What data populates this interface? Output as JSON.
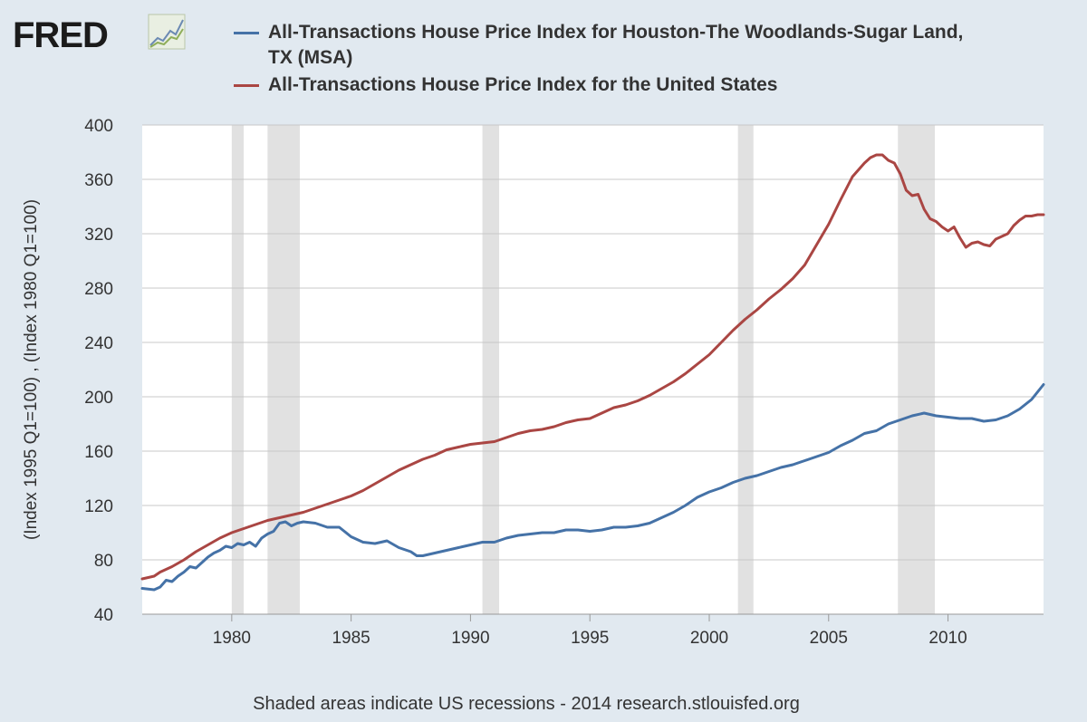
{
  "header": {
    "logo_text": "FRED",
    "logo_icon": "trend-graph-icon"
  },
  "legend": {
    "items": [
      {
        "label": "All-Transactions House Price Index for Houston-The Woodlands-Sugar Land, TX (MSA)",
        "color": "#4572a7"
      },
      {
        "label": "All-Transactions House Price Index for the United States",
        "color": "#aa4643"
      }
    ]
  },
  "footer": {
    "note": "Shaded areas indicate US recessions - 2014 research.stlouisfed.org"
  },
  "colors": {
    "background": "#e1e9f0",
    "plot_area": "#ffffff",
    "gridline": "#c8c8c8",
    "recession": "#e1e1e1"
  },
  "chart_data": {
    "type": "line",
    "title": "",
    "xlabel": "",
    "ylabel": "(Index 1995 Q1=100) , (Index 1980 Q1=100)",
    "xlim": [
      1976.25,
      2014.0
    ],
    "ylim": [
      40,
      400
    ],
    "yticks": [
      40,
      80,
      120,
      160,
      200,
      240,
      280,
      320,
      360,
      400
    ],
    "xticks": [
      1980,
      1985,
      1990,
      1995,
      2000,
      2005,
      2010
    ],
    "grid": true,
    "recessions": [
      [
        1980.0,
        1980.5
      ],
      [
        1981.5,
        1982.85
      ],
      [
        1990.5,
        1991.2
      ],
      [
        2001.2,
        2001.85
      ],
      [
        2007.9,
        2009.45
      ]
    ],
    "series": [
      {
        "name": "All-Transactions House Price Index for Houston-The Woodlands-Sugar Land, TX (MSA)",
        "color": "#4572a7",
        "x": [
          1976.25,
          1976.75,
          1977.0,
          1977.25,
          1977.5,
          1977.75,
          1978.0,
          1978.25,
          1978.5,
          1978.75,
          1979.0,
          1979.25,
          1979.5,
          1979.75,
          1980.0,
          1980.25,
          1980.5,
          1980.75,
          1981.0,
          1981.25,
          1981.5,
          1981.75,
          1982.0,
          1982.25,
          1982.5,
          1982.75,
          1983.0,
          1983.5,
          1984.0,
          1984.5,
          1985.0,
          1985.5,
          1986.0,
          1986.5,
          1987.0,
          1987.5,
          1987.75,
          1988.0,
          1988.5,
          1989.0,
          1989.5,
          1990.0,
          1990.5,
          1991.0,
          1991.5,
          1992.0,
          1992.5,
          1993.0,
          1993.5,
          1994.0,
          1994.5,
          1995.0,
          1995.5,
          1996.0,
          1996.5,
          1997.0,
          1997.5,
          1998.0,
          1998.5,
          1999.0,
          1999.5,
          2000.0,
          2000.5,
          2001.0,
          2001.5,
          2002.0,
          2002.5,
          2003.0,
          2003.5,
          2004.0,
          2004.5,
          2005.0,
          2005.5,
          2006.0,
          2006.5,
          2007.0,
          2007.5,
          2008.0,
          2008.5,
          2009.0,
          2009.5,
          2010.0,
          2010.5,
          2011.0,
          2011.5,
          2012.0,
          2012.5,
          2013.0,
          2013.5,
          2014.0
        ],
        "values": [
          59,
          58,
          60,
          65,
          64,
          68,
          71,
          75,
          74,
          78,
          82,
          85,
          87,
          90,
          89,
          92,
          91,
          93,
          90,
          96,
          99,
          101,
          107,
          108,
          105,
          107,
          108,
          107,
          104,
          104,
          97,
          93,
          92,
          94,
          89,
          86,
          83,
          83,
          85,
          87,
          89,
          91,
          93,
          93,
          96,
          98,
          99,
          100,
          100,
          102,
          102,
          101,
          102,
          104,
          104,
          105,
          107,
          111,
          115,
          120,
          126,
          130,
          133,
          137,
          140,
          142,
          145,
          148,
          150,
          153,
          156,
          159,
          164,
          168,
          173,
          175,
          180,
          183,
          186,
          188,
          186,
          185,
          184,
          184,
          182,
          183,
          186,
          191,
          198,
          209
        ]
      },
      {
        "name": "All-Transactions House Price Index for the United States",
        "color": "#aa4643",
        "x": [
          1976.25,
          1976.75,
          1977.0,
          1977.5,
          1978.0,
          1978.5,
          1979.0,
          1979.5,
          1980.0,
          1980.5,
          1981.0,
          1981.5,
          1982.0,
          1982.5,
          1983.0,
          1983.5,
          1984.0,
          1984.5,
          1985.0,
          1985.5,
          1986.0,
          1986.5,
          1987.0,
          1987.5,
          1988.0,
          1988.5,
          1989.0,
          1989.5,
          1990.0,
          1990.5,
          1991.0,
          1991.5,
          1992.0,
          1992.5,
          1993.0,
          1993.5,
          1994.0,
          1994.5,
          1995.0,
          1995.5,
          1996.0,
          1996.5,
          1997.0,
          1997.5,
          1998.0,
          1998.5,
          1999.0,
          1999.5,
          2000.0,
          2000.5,
          2001.0,
          2001.5,
          2002.0,
          2002.5,
          2003.0,
          2003.5,
          2004.0,
          2004.5,
          2005.0,
          2005.5,
          2006.0,
          2006.5,
          2006.75,
          2007.0,
          2007.25,
          2007.5,
          2007.75,
          2008.0,
          2008.25,
          2008.5,
          2008.75,
          2009.0,
          2009.25,
          2009.5,
          2009.75,
          2010.0,
          2010.25,
          2010.5,
          2010.75,
          2011.0,
          2011.25,
          2011.5,
          2011.75,
          2012.0,
          2012.25,
          2012.5,
          2012.75,
          2013.0,
          2013.25,
          2013.5,
          2013.75,
          2014.0
        ],
        "values": [
          66,
          68,
          71,
          75,
          80,
          86,
          91,
          96,
          100,
          103,
          106,
          109,
          111,
          113,
          115,
          118,
          121,
          124,
          127,
          131,
          136,
          141,
          146,
          150,
          154,
          157,
          161,
          163,
          165,
          166,
          167,
          170,
          173,
          175,
          176,
          178,
          181,
          183,
          184,
          188,
          192,
          194,
          197,
          201,
          206,
          211,
          217,
          224,
          231,
          240,
          249,
          257,
          264,
          272,
          279,
          287,
          297,
          312,
          327,
          345,
          362,
          372,
          376,
          378,
          378,
          374,
          372,
          364,
          352,
          348,
          349,
          338,
          331,
          329,
          325,
          322,
          325,
          317,
          310,
          313,
          314,
          312,
          311,
          316,
          318,
          320,
          326,
          330,
          333,
          333,
          334,
          334
        ]
      }
    ]
  }
}
